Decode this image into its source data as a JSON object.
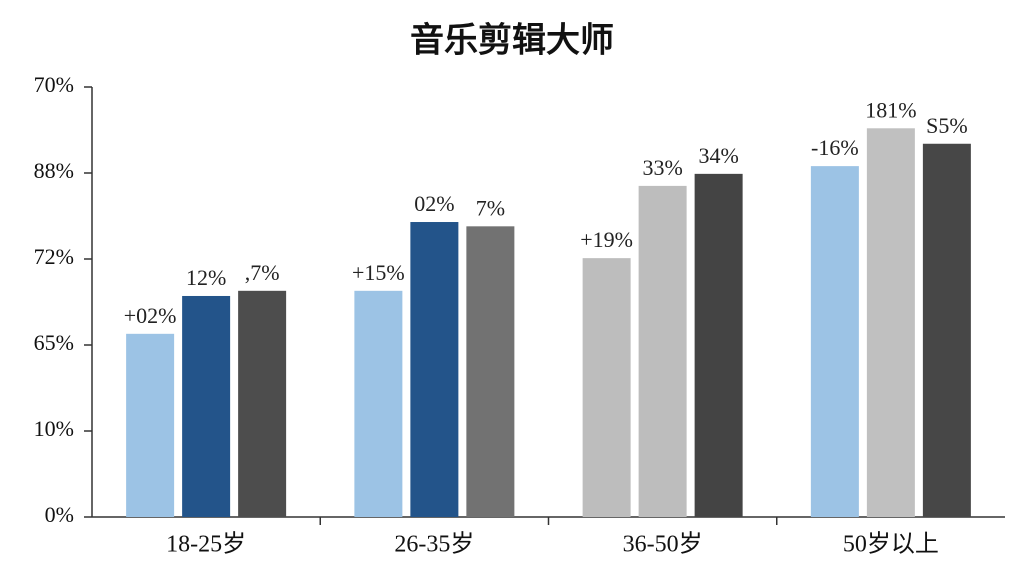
{
  "chart_data": {
    "type": "bar",
    "title": "音乐剪辑大师",
    "categories": [
      "18-25岁",
      "26-35岁",
      "36-50岁",
      "50岁以上"
    ],
    "ylim": [
      0,
      5
    ],
    "yticks": [
      {
        "value": 0,
        "label": "0%"
      },
      {
        "value": 1,
        "label": "10%"
      },
      {
        "value": 2,
        "label": "65%"
      },
      {
        "value": 3,
        "label": "72%"
      },
      {
        "value": 4,
        "label": "88%"
      },
      {
        "value": 5,
        "label": "70%"
      }
    ],
    "series": [
      {
        "values": [
          2.13,
          2.63,
          3.01,
          4.08
        ],
        "colors": [
          "#9cc3e5",
          "#9cc3e5",
          "#bdbdbd",
          "#9cc3e5"
        ],
        "bar_labels": [
          "+02%",
          "+15%",
          "+19%",
          "-16%"
        ]
      },
      {
        "values": [
          2.57,
          3.43,
          3.85,
          4.52
        ],
        "colors": [
          "#23548a",
          "#23548a",
          "#bdbdbd",
          "#c0c0c0"
        ],
        "bar_labels": [
          "12%",
          "02%",
          "33%",
          "181%"
        ]
      },
      {
        "values": [
          2.63,
          3.38,
          3.99,
          4.34
        ],
        "colors": [
          "#4d4d4d",
          "#727272",
          "#444444",
          "#474747"
        ],
        "bar_labels": [
          ",7%",
          "7%",
          "34%",
          "S5%"
        ]
      }
    ]
  }
}
